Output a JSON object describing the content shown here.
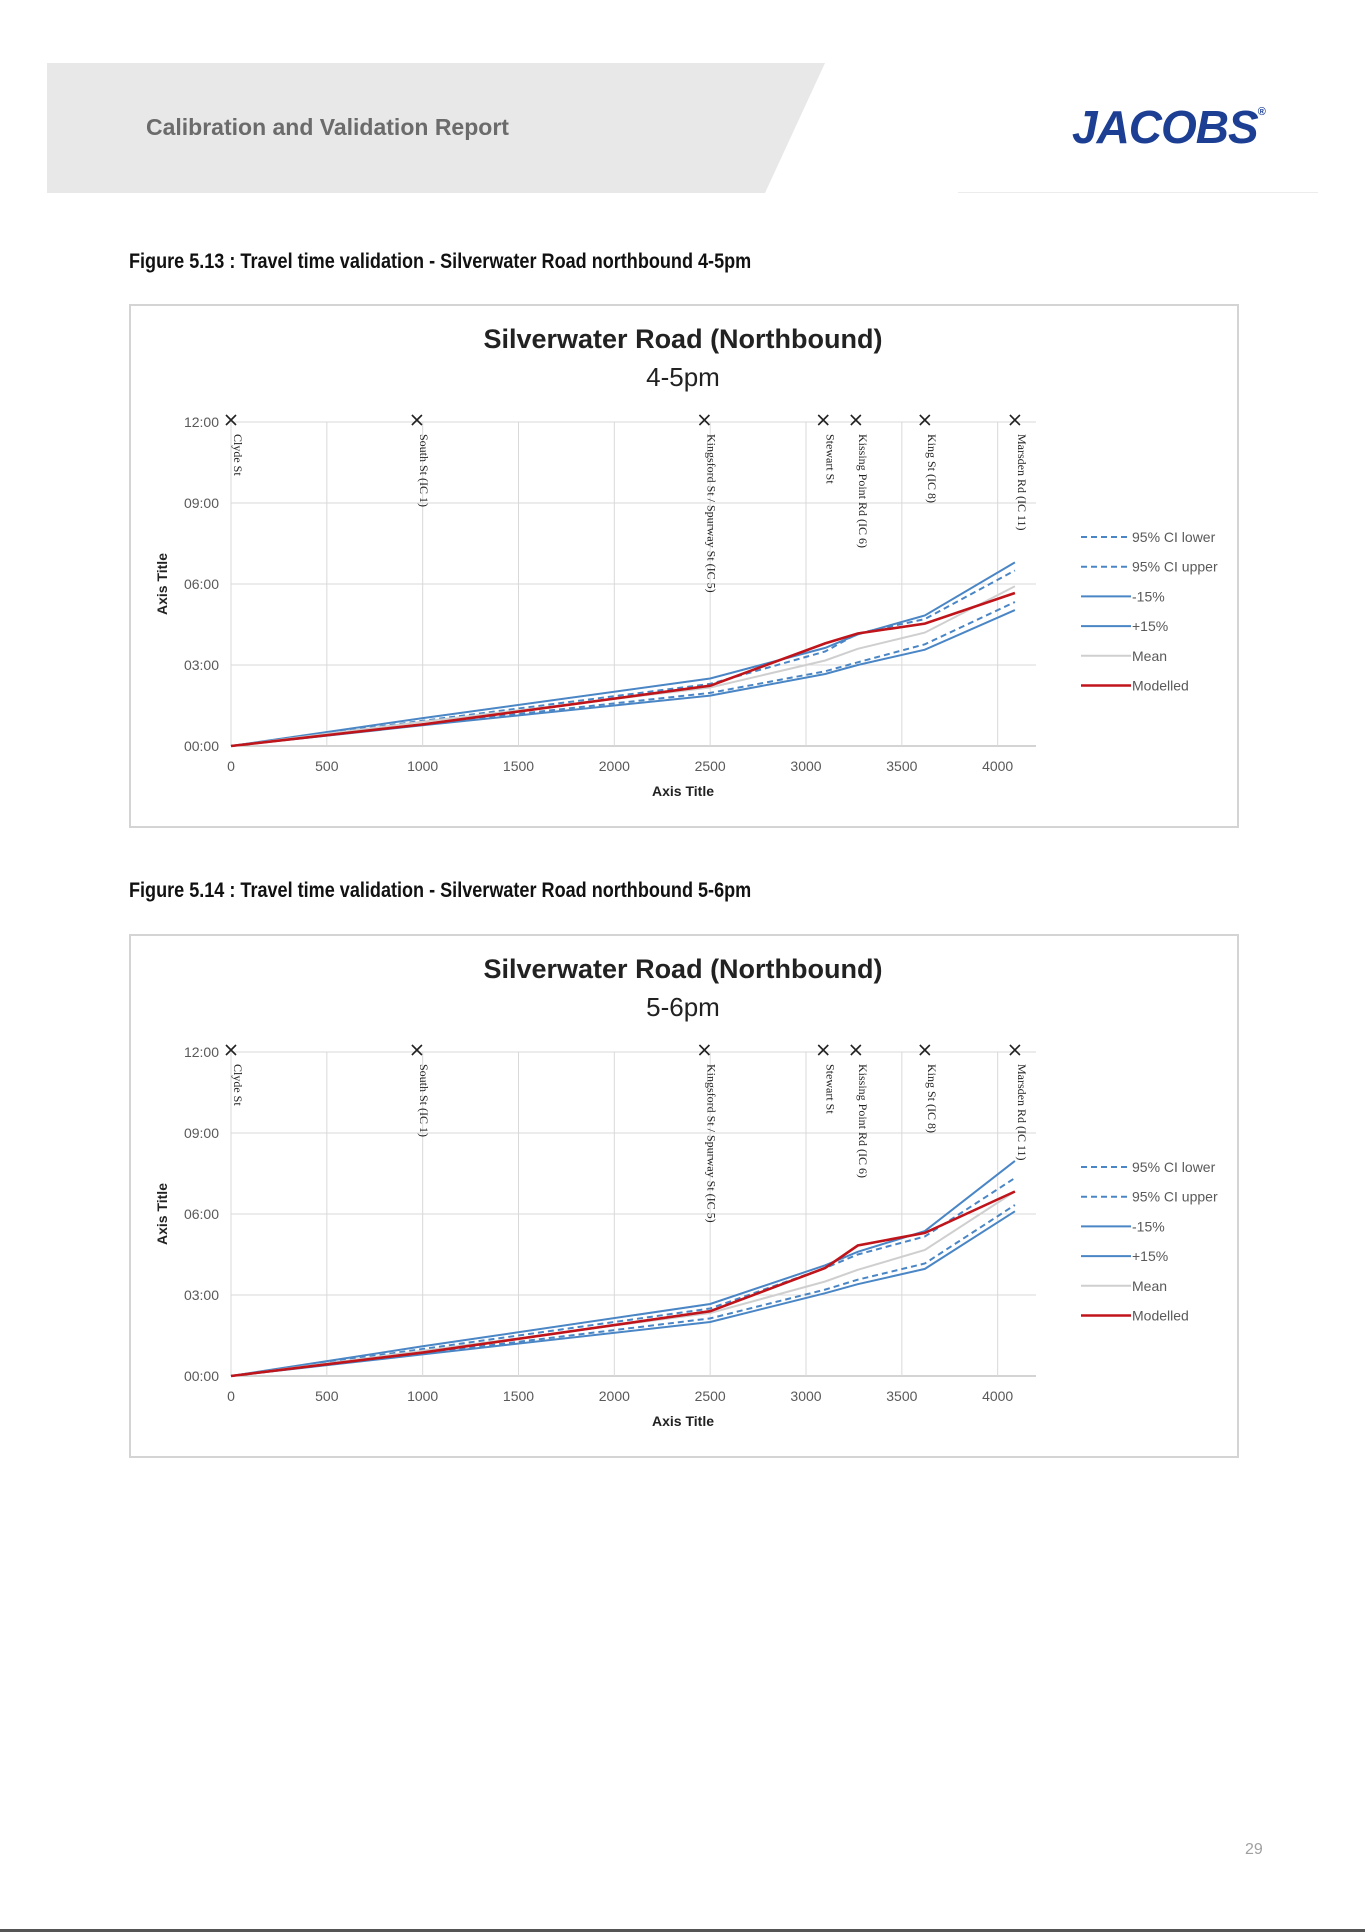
{
  "header": {
    "title": "Calibration and Validation Report",
    "logo_text": "JACOBS",
    "logo_mark": "®"
  },
  "page_number": "29",
  "figures": [
    {
      "caption": "Figure 5.13 : Travel time validation - Silverwater Road northbound 4-5pm"
    },
    {
      "caption": "Figure 5.14 : Travel time validation - Silverwater Road northbound 5-6pm"
    }
  ],
  "chart_data": [
    {
      "type": "line",
      "title": "Silverwater Road (Northbound)",
      "subtitle": "4-5pm",
      "xlabel": "Axis Title",
      "ylabel": "Axis Title",
      "xlim": [
        0,
        4200
      ],
      "ylim": [
        0,
        720
      ],
      "x_ticks": [
        0,
        500,
        1000,
        1500,
        2000,
        2500,
        3000,
        3500,
        4000
      ],
      "y_ticks": [
        {
          "value": 0,
          "label": "00:00"
        },
        {
          "value": 180,
          "label": "03:00"
        },
        {
          "value": 360,
          "label": "06:00"
        },
        {
          "value": 540,
          "label": "09:00"
        },
        {
          "value": 720,
          "label": "12:00"
        }
      ],
      "grid": true,
      "legend_position": "right",
      "markers": [
        {
          "x": 0,
          "label": "Clyde St"
        },
        {
          "x": 970,
          "label": "South St (IC 1)"
        },
        {
          "x": 2470,
          "label": "Kingsford St / Spurway St (IC 5)"
        },
        {
          "x": 3090,
          "label": "Stewart St"
        },
        {
          "x": 3260,
          "label": "Kissing Point Rd (IC 6)"
        },
        {
          "x": 3620,
          "label": "King St (IC 8)"
        },
        {
          "x": 4090,
          "label": "Marsden Rd (IC 11)"
        }
      ],
      "x": [
        0,
        1000,
        2500,
        3100,
        3270,
        3620,
        4090
      ],
      "series": [
        {
          "name": "95% CI lower",
          "color": "#4a86c5",
          "dash": true,
          "values": [
            0,
            48,
            118,
            166,
            186,
            226,
            320
          ]
        },
        {
          "name": "95% CI upper",
          "color": "#4a86c5",
          "dash": true,
          "values": [
            0,
            56,
            138,
            210,
            250,
            282,
            390
          ]
        },
        {
          "name": "-15%",
          "color": "#4a86c5",
          "dash": false,
          "values": [
            0,
            46,
            112,
            160,
            180,
            214,
            302
          ]
        },
        {
          "name": "+15%",
          "color": "#4a86c5",
          "dash": false,
          "values": [
            0,
            62,
            150,
            218,
            248,
            290,
            408
          ]
        },
        {
          "name": "Mean",
          "color": "#cfcfcf",
          "dash": false,
          "values": [
            0,
            54,
            130,
            190,
            216,
            252,
            355
          ]
        },
        {
          "name": "Modelled",
          "color": "#c0141b",
          "dash": false,
          "values": [
            0,
            48,
            134,
            228,
            250,
            272,
            340
          ]
        }
      ]
    },
    {
      "type": "line",
      "title": "Silverwater Road (Northbound)",
      "subtitle": "5-6pm",
      "xlabel": "Axis Title",
      "ylabel": "Axis Title",
      "xlim": [
        0,
        4200
      ],
      "ylim": [
        0,
        720
      ],
      "x_ticks": [
        0,
        500,
        1000,
        1500,
        2000,
        2500,
        3000,
        3500,
        4000
      ],
      "y_ticks": [
        {
          "value": 0,
          "label": "00:00"
        },
        {
          "value": 180,
          "label": "03:00"
        },
        {
          "value": 360,
          "label": "06:00"
        },
        {
          "value": 540,
          "label": "09:00"
        },
        {
          "value": 720,
          "label": "12:00"
        }
      ],
      "grid": true,
      "legend_position": "right",
      "markers": [
        {
          "x": 0,
          "label": "Clyde St"
        },
        {
          "x": 970,
          "label": "South St (IC 1)"
        },
        {
          "x": 2470,
          "label": "Kingsford St / Spurway St (IC 5)"
        },
        {
          "x": 3090,
          "label": "Stewart St"
        },
        {
          "x": 3260,
          "label": "Kissing Point Rd (IC 6)"
        },
        {
          "x": 3620,
          "label": "King St (IC 8)"
        },
        {
          "x": 4090,
          "label": "Marsden Rd (IC 11)"
        }
      ],
      "x": [
        0,
        1000,
        2500,
        3100,
        3270,
        3620,
        4090
      ],
      "series": [
        {
          "name": "95% CI lower",
          "color": "#4a86c5",
          "dash": true,
          "values": [
            0,
            50,
            128,
            192,
            214,
            250,
            380
          ]
        },
        {
          "name": "95% CI upper",
          "color": "#4a86c5",
          "dash": true,
          "values": [
            0,
            60,
            150,
            240,
            270,
            310,
            440
          ]
        },
        {
          "name": "-15%",
          "color": "#4a86c5",
          "dash": false,
          "values": [
            0,
            48,
            120,
            184,
            204,
            238,
            366
          ]
        },
        {
          "name": "+15%",
          "color": "#4a86c5",
          "dash": false,
          "values": [
            0,
            66,
            160,
            246,
            276,
            322,
            478
          ]
        },
        {
          "name": "Mean",
          "color": "#cfcfcf",
          "dash": false,
          "values": [
            0,
            56,
            140,
            210,
            236,
            280,
            410
          ]
        },
        {
          "name": "Modelled",
          "color": "#c0141b",
          "dash": false,
          "values": [
            0,
            52,
            144,
            240,
            290,
            318,
            410
          ]
        }
      ]
    }
  ]
}
